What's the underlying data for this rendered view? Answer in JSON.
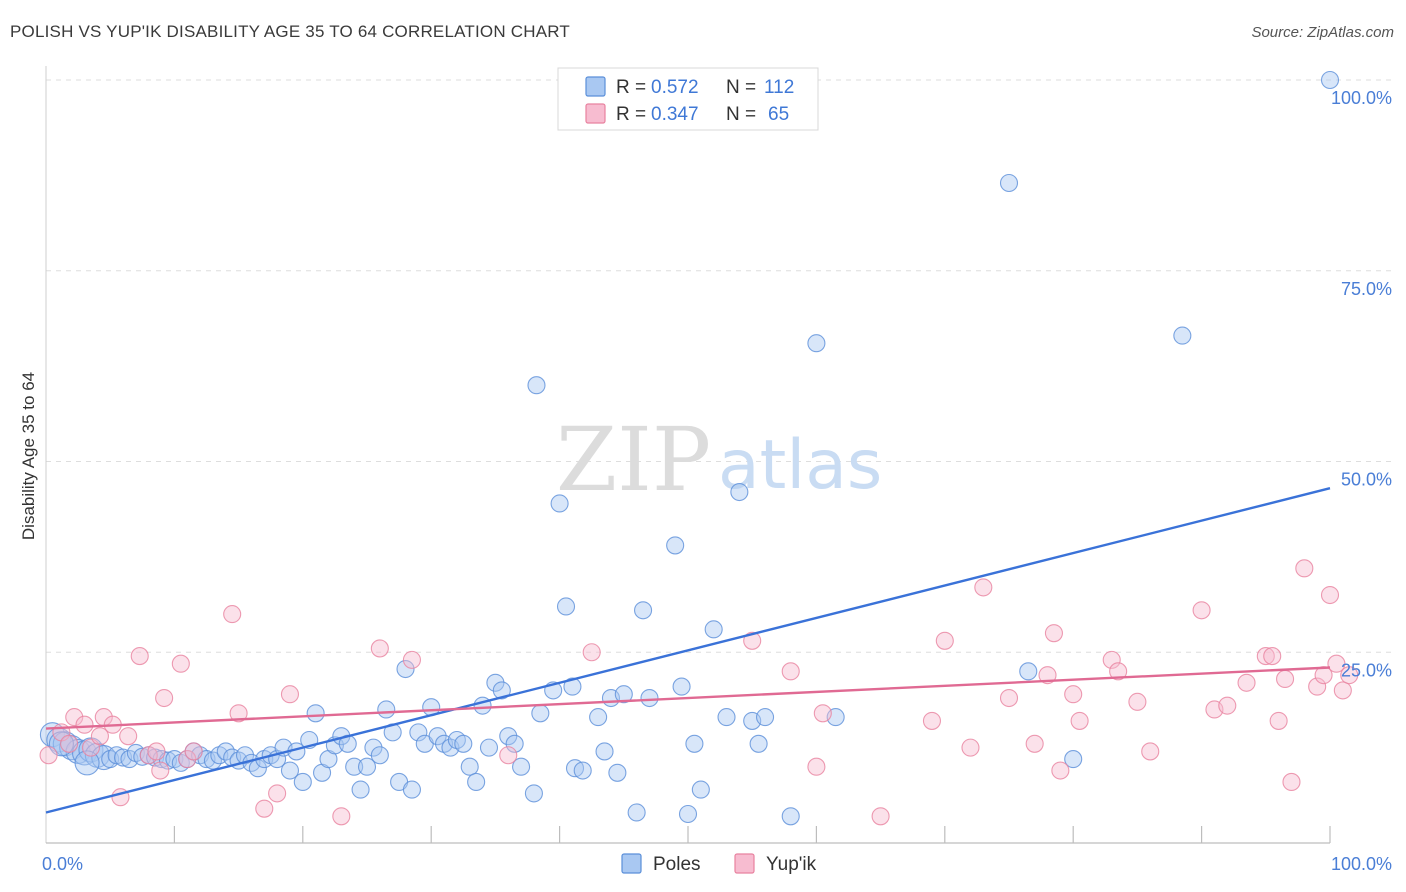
{
  "title": "POLISH VS YUP'IK DISABILITY AGE 35 TO 64 CORRELATION CHART",
  "source": "Source: ZipAtlas.com",
  "watermark": {
    "zip": "ZIP",
    "atlas": "atlas"
  },
  "legend": {
    "rows": [
      {
        "r_label": "R =",
        "r_value": "0.572",
        "n_label": "N =",
        "n_value": "112",
        "color": "#a9c8f2"
      },
      {
        "r_label": "R =",
        "r_value": "0.347",
        "n_label": "N =",
        "n_value": "65",
        "color": "#f7bcd0"
      }
    ]
  },
  "bottom_legend": [
    {
      "label": "Poles",
      "color": "#a9c8f2"
    },
    {
      "label": "Yup'ik",
      "color": "#f7bcd0"
    }
  ],
  "chart_data": {
    "type": "scatter",
    "xlabel": "",
    "ylabel": "Disability Age 35 to 64",
    "xlim": [
      0,
      100
    ],
    "ylim": [
      0,
      100
    ],
    "x_tick_labels": [
      {
        "value": 0,
        "label": "0.0%"
      },
      {
        "value": 100,
        "label": "100.0%"
      }
    ],
    "y_tick_labels": [
      {
        "value": 25,
        "label": "25.0%"
      },
      {
        "value": 50,
        "label": "50.0%"
      },
      {
        "value": 75,
        "label": "75.0%"
      },
      {
        "value": 100,
        "label": "100.0%"
      }
    ],
    "x_minor_ticks": [
      10,
      20,
      30,
      40,
      50,
      60,
      70,
      80,
      90,
      100
    ],
    "grid": "horizontal dashed",
    "series": [
      {
        "name": "Poles",
        "color": "#a9c8f2",
        "stroke": "#5b8fd9",
        "trend": {
          "x": [
            0,
            100
          ],
          "y": [
            4.0,
            46.5
          ],
          "color": "#3a72d8"
        },
        "points": [
          [
            0.5,
            14.2
          ],
          [
            1.0,
            13.5
          ],
          [
            1.5,
            13.0
          ],
          [
            2.0,
            12.5
          ],
          [
            2.5,
            12.0
          ],
          [
            3.0,
            11.8
          ],
          [
            3.5,
            12.2
          ],
          [
            4.0,
            11.5
          ],
          [
            4.5,
            11.2
          ],
          [
            5.0,
            11.0
          ],
          [
            5.5,
            11.5
          ],
          [
            6.0,
            11.2
          ],
          [
            6.5,
            11.0
          ],
          [
            7.0,
            11.8
          ],
          [
            7.5,
            11.3
          ],
          [
            8.0,
            11.5
          ],
          [
            8.5,
            11.2
          ],
          [
            9.0,
            11.0
          ],
          [
            9.5,
            10.8
          ],
          [
            10.0,
            11.0
          ],
          [
            10.5,
            10.5
          ],
          [
            11.0,
            11.0
          ],
          [
            11.5,
            12.0
          ],
          [
            12.0,
            11.5
          ],
          [
            12.5,
            11.0
          ],
          [
            13.0,
            10.8
          ],
          [
            13.5,
            11.5
          ],
          [
            14.0,
            12.0
          ],
          [
            14.5,
            11.2
          ],
          [
            15.0,
            10.8
          ],
          [
            15.5,
            11.5
          ],
          [
            16.0,
            10.5
          ],
          [
            16.5,
            9.8
          ],
          [
            17.0,
            11.0
          ],
          [
            17.5,
            11.5
          ],
          [
            18.0,
            11.0
          ],
          [
            18.5,
            12.5
          ],
          [
            19.0,
            9.5
          ],
          [
            19.5,
            12.0
          ],
          [
            20.0,
            8.0
          ],
          [
            20.5,
            13.5
          ],
          [
            21.0,
            17.0
          ],
          [
            21.5,
            9.2
          ],
          [
            22.0,
            11.0
          ],
          [
            22.5,
            12.8
          ],
          [
            23.0,
            14.0
          ],
          [
            23.5,
            13.0
          ],
          [
            24.0,
            10.0
          ],
          [
            24.5,
            7.0
          ],
          [
            25.0,
            10.0
          ],
          [
            25.5,
            12.5
          ],
          [
            26.0,
            11.5
          ],
          [
            26.5,
            17.5
          ],
          [
            27.0,
            14.5
          ],
          [
            27.5,
            8.0
          ],
          [
            28.0,
            22.8
          ],
          [
            28.5,
            7.0
          ],
          [
            29.0,
            14.5
          ],
          [
            29.5,
            13.0
          ],
          [
            30.0,
            17.8
          ],
          [
            30.5,
            14.0
          ],
          [
            31.0,
            13.0
          ],
          [
            31.5,
            12.5
          ],
          [
            32.0,
            13.5
          ],
          [
            32.5,
            13.0
          ],
          [
            33.0,
            10.0
          ],
          [
            33.5,
            8.0
          ],
          [
            34.0,
            18.0
          ],
          [
            34.5,
            12.5
          ],
          [
            35.0,
            21.0
          ],
          [
            35.5,
            20.0
          ],
          [
            36.0,
            14.0
          ],
          [
            36.5,
            13.0
          ],
          [
            37.0,
            10.0
          ],
          [
            38.0,
            6.5
          ],
          [
            38.2,
            60.0
          ],
          [
            38.5,
            17.0
          ],
          [
            39.5,
            20.0
          ],
          [
            40.0,
            44.5
          ],
          [
            40.5,
            31.0
          ],
          [
            41.0,
            20.5
          ],
          [
            41.2,
            9.8
          ],
          [
            41.8,
            9.5
          ],
          [
            43.0,
            16.5
          ],
          [
            43.5,
            12.0
          ],
          [
            44.0,
            19.0
          ],
          [
            44.5,
            9.2
          ],
          [
            45.0,
            19.5
          ],
          [
            46.0,
            4.0
          ],
          [
            46.5,
            30.5
          ],
          [
            47.0,
            19.0
          ],
          [
            49.0,
            39.0
          ],
          [
            49.5,
            20.5
          ],
          [
            50.0,
            3.8
          ],
          [
            50.5,
            13.0
          ],
          [
            51.0,
            7.0
          ],
          [
            52.0,
            28.0
          ],
          [
            53.0,
            16.5
          ],
          [
            54.0,
            46.0
          ],
          [
            55.0,
            16.0
          ],
          [
            55.5,
            13.0
          ],
          [
            56.0,
            16.5
          ],
          [
            58.0,
            3.5
          ],
          [
            60.0,
            65.5
          ],
          [
            61.5,
            16.5
          ],
          [
            75.0,
            86.5
          ],
          [
            76.5,
            22.5
          ],
          [
            80.0,
            11.0
          ],
          [
            88.5,
            66.5
          ],
          [
            100.0,
            100.0
          ],
          [
            1.2,
            13.0
          ],
          [
            3.2,
            10.5
          ]
        ]
      },
      {
        "name": "Yup'ik",
        "color": "#f7bcd0",
        "stroke": "#e8829f",
        "trend": {
          "x": [
            0,
            100
          ],
          "y": [
            15.0,
            23.0
          ],
          "color": "#e06a93"
        },
        "points": [
          [
            0.2,
            11.5
          ],
          [
            1.2,
            14.5
          ],
          [
            1.8,
            13.0
          ],
          [
            2.2,
            16.5
          ],
          [
            3.0,
            15.5
          ],
          [
            3.5,
            12.5
          ],
          [
            4.2,
            14.0
          ],
          [
            4.5,
            16.5
          ],
          [
            5.2,
            15.5
          ],
          [
            5.8,
            6.0
          ],
          [
            6.4,
            14.0
          ],
          [
            7.3,
            24.5
          ],
          [
            8.0,
            11.5
          ],
          [
            8.6,
            12.0
          ],
          [
            8.9,
            9.5
          ],
          [
            9.2,
            19.0
          ],
          [
            10.5,
            23.5
          ],
          [
            11.0,
            11.0
          ],
          [
            11.5,
            12.0
          ],
          [
            14.5,
            30.0
          ],
          [
            15.0,
            17.0
          ],
          [
            17.0,
            4.5
          ],
          [
            18.0,
            6.5
          ],
          [
            19.0,
            19.5
          ],
          [
            23.0,
            3.5
          ],
          [
            26.0,
            25.5
          ],
          [
            28.5,
            24.0
          ],
          [
            36.0,
            11.5
          ],
          [
            42.5,
            25.0
          ],
          [
            55.0,
            26.5
          ],
          [
            58.0,
            22.5
          ],
          [
            60.0,
            10.0
          ],
          [
            60.5,
            17.0
          ],
          [
            65.0,
            3.5
          ],
          [
            69.0,
            16.0
          ],
          [
            70.0,
            26.5
          ],
          [
            72.0,
            12.5
          ],
          [
            73.0,
            33.5
          ],
          [
            75.0,
            19.0
          ],
          [
            77.0,
            13.0
          ],
          [
            78.0,
            22.0
          ],
          [
            78.5,
            27.5
          ],
          [
            79.0,
            9.5
          ],
          [
            80.0,
            19.5
          ],
          [
            80.5,
            16.0
          ],
          [
            83.0,
            24.0
          ],
          [
            83.5,
            22.5
          ],
          [
            85.0,
            18.5
          ],
          [
            86.0,
            12.0
          ],
          [
            90.0,
            30.5
          ],
          [
            91.0,
            17.5
          ],
          [
            92.0,
            18.0
          ],
          [
            93.5,
            21.0
          ],
          [
            95.0,
            24.5
          ],
          [
            95.5,
            24.5
          ],
          [
            96.0,
            16.0
          ],
          [
            96.5,
            21.5
          ],
          [
            97.0,
            8.0
          ],
          [
            98.0,
            36.0
          ],
          [
            99.0,
            20.5
          ],
          [
            99.5,
            22.0
          ],
          [
            100.0,
            32.5
          ],
          [
            100.5,
            23.5
          ],
          [
            101.0,
            20.0
          ],
          [
            101.5,
            22.0
          ]
        ]
      }
    ]
  }
}
